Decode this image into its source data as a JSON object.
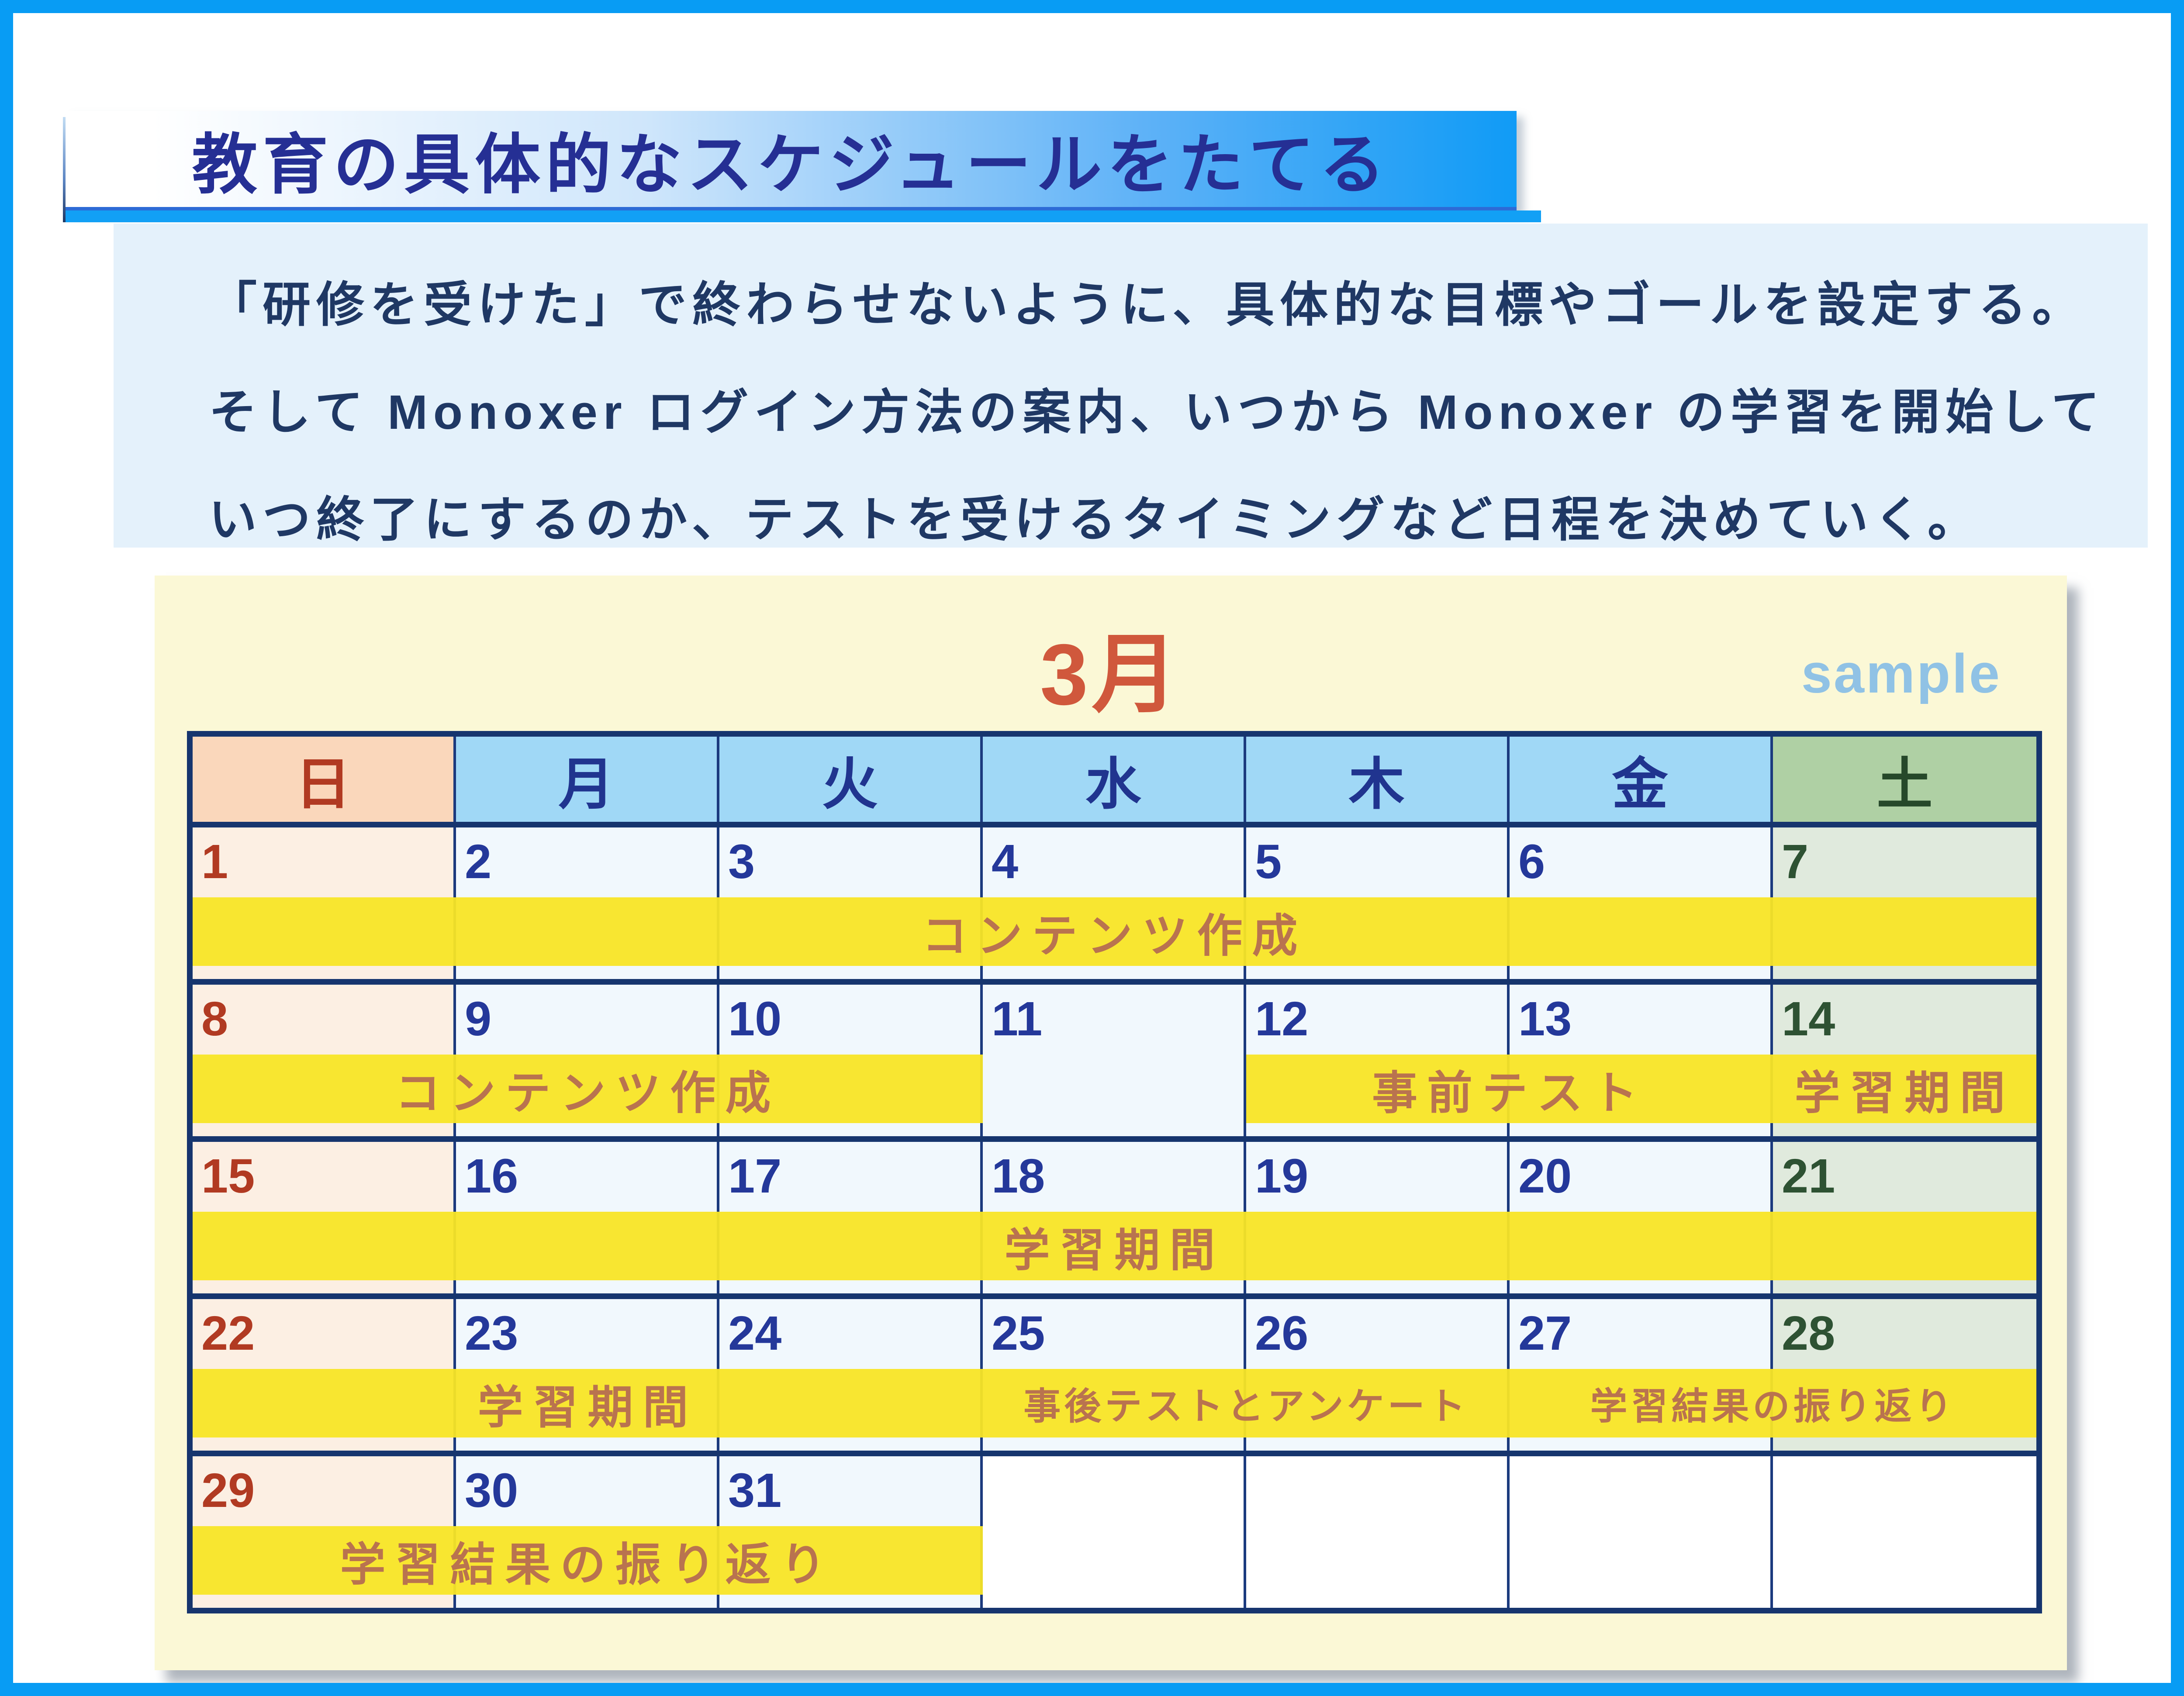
{
  "title": {
    "text": "教育の具体的なスケジュールをたてる"
  },
  "paragraph": {
    "line1": "「研修を受けた」で終わらせないように、具体的な目標やゴールを設定する。",
    "line2": "そして Monoxer ログイン方法の案内、いつから Monoxer の学習を開始して",
    "line3": "いつ終了にするのか、テストを受けるタイミングなど日程を決めていく。"
  },
  "calendar": {
    "month_label": "3月",
    "watermark": "sample",
    "day_headers": [
      {
        "label": "日",
        "type": "sun"
      },
      {
        "label": "月",
        "type": "wd"
      },
      {
        "label": "火",
        "type": "wd"
      },
      {
        "label": "水",
        "type": "wd"
      },
      {
        "label": "木",
        "type": "wd"
      },
      {
        "label": "金",
        "type": "wd"
      },
      {
        "label": "土",
        "type": "sat"
      }
    ],
    "weeks": [
      {
        "days": [
          {
            "date": "1",
            "type": "sun"
          },
          {
            "date": "2",
            "type": "wd"
          },
          {
            "date": "3",
            "type": "wd"
          },
          {
            "date": "4",
            "type": "wd"
          },
          {
            "date": "5",
            "type": "wd"
          },
          {
            "date": "6",
            "type": "wd"
          },
          {
            "date": "7",
            "type": "sat"
          }
        ],
        "bars": [
          {
            "label": "コンテンツ作成",
            "start": 1,
            "span": 7,
            "size": "normal"
          }
        ]
      },
      {
        "days": [
          {
            "date": "8",
            "type": "sun"
          },
          {
            "date": "9",
            "type": "wd"
          },
          {
            "date": "10",
            "type": "wd"
          },
          {
            "date": "11",
            "type": "wd"
          },
          {
            "date": "12",
            "type": "wd"
          },
          {
            "date": "13",
            "type": "wd"
          },
          {
            "date": "14",
            "type": "sat"
          }
        ],
        "bars": [
          {
            "label": "コンテンツ作成",
            "start": 1,
            "span": 3,
            "size": "normal"
          },
          {
            "label": "事前テスト",
            "start": 5,
            "span": 2,
            "size": "normal"
          },
          {
            "label": "学習期間",
            "start": 7,
            "span": 1,
            "size": "normal"
          }
        ]
      },
      {
        "days": [
          {
            "date": "15",
            "type": "sun"
          },
          {
            "date": "16",
            "type": "wd"
          },
          {
            "date": "17",
            "type": "wd"
          },
          {
            "date": "18",
            "type": "wd"
          },
          {
            "date": "19",
            "type": "wd"
          },
          {
            "date": "20",
            "type": "wd"
          },
          {
            "date": "21",
            "type": "sat"
          }
        ],
        "bars": [
          {
            "label": "学習期間",
            "start": 1,
            "span": 7,
            "size": "normal"
          }
        ]
      },
      {
        "days": [
          {
            "date": "22",
            "type": "sun"
          },
          {
            "date": "23",
            "type": "wd"
          },
          {
            "date": "24",
            "type": "wd"
          },
          {
            "date": "25",
            "type": "wd"
          },
          {
            "date": "26",
            "type": "wd"
          },
          {
            "date": "27",
            "type": "wd"
          },
          {
            "date": "28",
            "type": "sat"
          }
        ],
        "bars": [
          {
            "label": "学習期間",
            "start": 1,
            "span": 3,
            "size": "normal"
          },
          {
            "label": "事後テストとアンケート",
            "start": 4,
            "span": 2,
            "size": "small"
          },
          {
            "label": "学習結果の振り返り",
            "start": 6,
            "span": 2,
            "size": "small"
          }
        ]
      },
      {
        "days": [
          {
            "date": "29",
            "type": "sun"
          },
          {
            "date": "30",
            "type": "wd"
          },
          {
            "date": "31",
            "type": "wd"
          },
          {
            "date": "",
            "type": "empty"
          },
          {
            "date": "",
            "type": "empty"
          },
          {
            "date": "",
            "type": "empty"
          },
          {
            "date": "",
            "type": "empty"
          }
        ],
        "bars": [
          {
            "label": "学習結果の振り返り",
            "start": 1,
            "span": 3,
            "size": "normal"
          }
        ]
      }
    ]
  },
  "colors": {
    "frame_blue": "#089CF4",
    "banner_blue": "#109BF6",
    "banner_underline": "#12A0F5",
    "title_text": "#252F94",
    "paragraph_bg": "#E4F1FB",
    "paragraph_text": "#1F3864",
    "card_cream": "#FBF8D6",
    "month_red": "#D0583C",
    "watermark_blue": "#90C2E5",
    "table_border_navy": "#16356E",
    "sunday_header_bg": "#FAD7BB",
    "weekday_header_bg": "#A0D8F6",
    "saturday_header_bg": "#AFD0A4",
    "sunday_text": "#B13A22",
    "weekday_text": "#24389A",
    "saturday_text": "#2E5233",
    "event_bar_yellow": "#F8E526",
    "event_bar_text": "#B9734F"
  }
}
